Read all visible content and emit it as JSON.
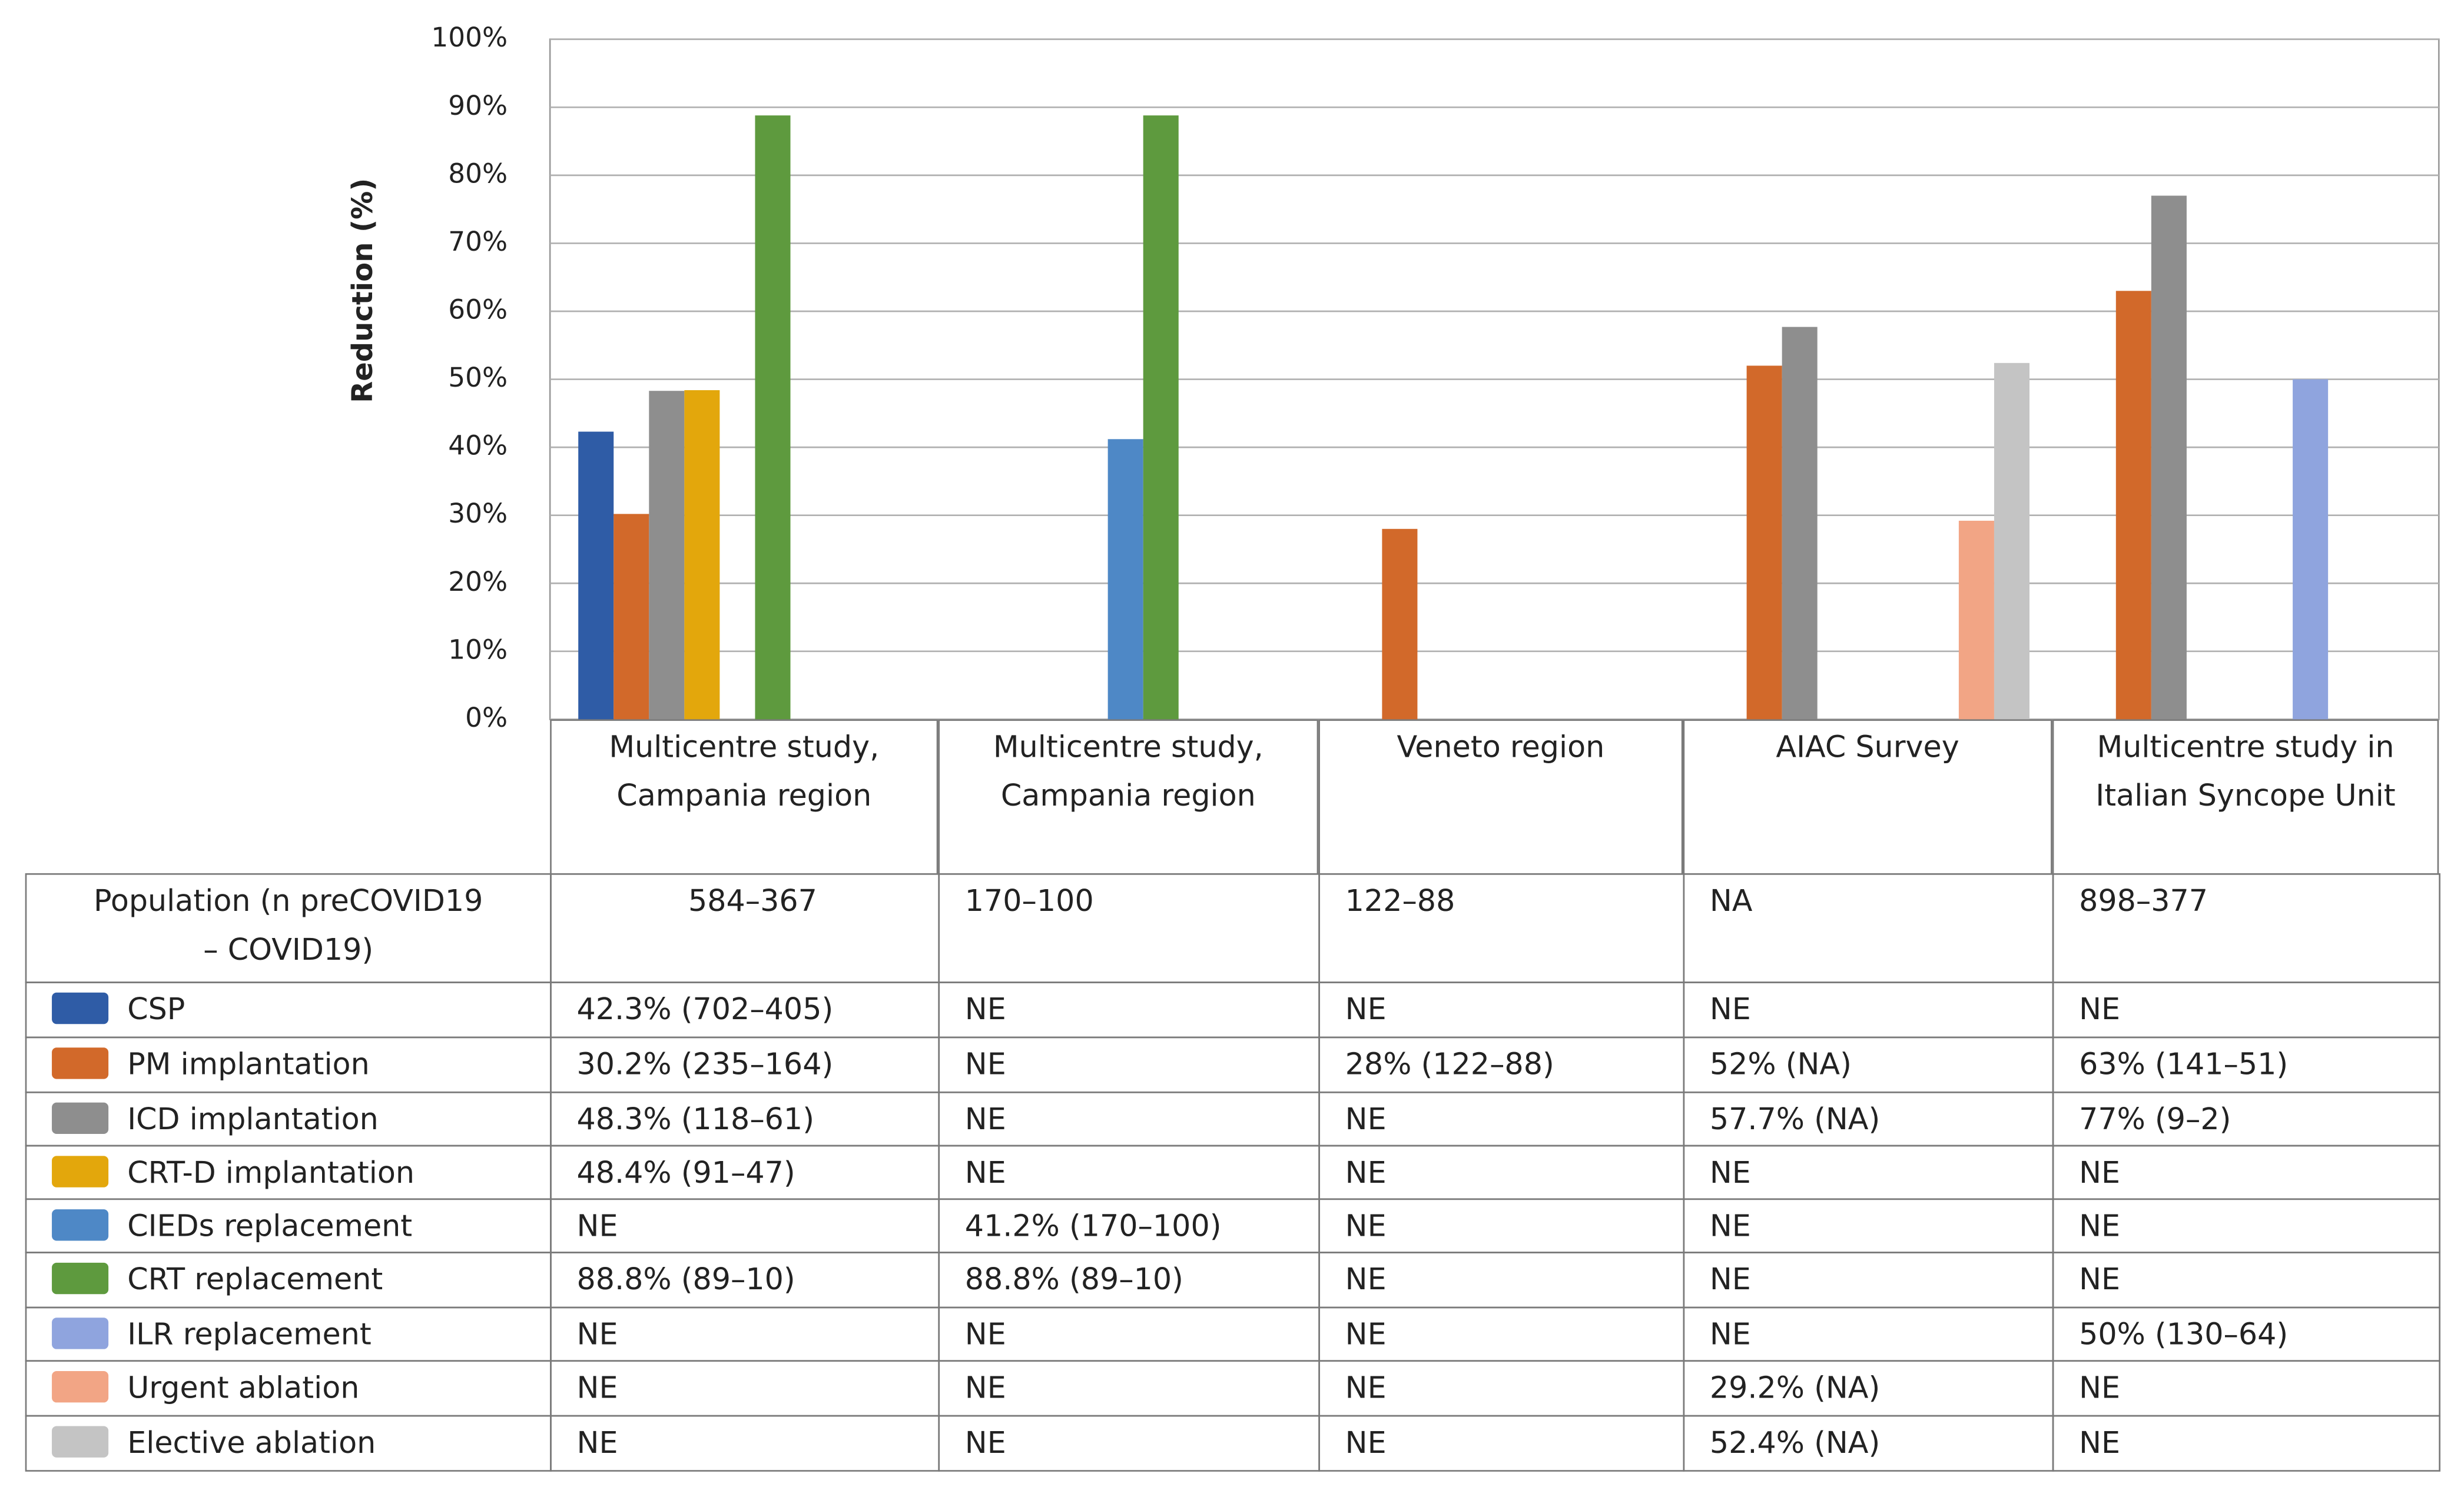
{
  "chart_data": {
    "type": "bar",
    "y_label": "Reduction (%)",
    "categories": [
      "Multicentre study, Campania region",
      "Multicentre study, Campania region",
      "Veneto region",
      "AIAC Survey",
      "Multicentre study in Italian Syncope Unit"
    ],
    "ylim": [
      0,
      100
    ],
    "yticks": [
      {
        "value": 0,
        "label": "0%"
      },
      {
        "value": 10,
        "label": "10%"
      },
      {
        "value": 20,
        "label": "20%"
      },
      {
        "value": 30,
        "label": "30%"
      },
      {
        "value": 40,
        "label": "40%"
      },
      {
        "value": 50,
        "label": "50%"
      },
      {
        "value": 60,
        "label": "60%"
      },
      {
        "value": 70,
        "label": "70%"
      },
      {
        "value": 80,
        "label": "80%"
      },
      {
        "value": 90,
        "label": "90%"
      },
      {
        "value": 100,
        "label": "100%"
      }
    ],
    "grid": true,
    "population_label": "Population (n preCOVID19 – COVID19)",
    "population": [
      "584–367",
      "170–100",
      "122–88",
      "NA",
      "898–377"
    ],
    "series": [
      {
        "name": "CSP",
        "color": "#2f5ca6",
        "values": [
          42.3,
          null,
          null,
          null,
          null
        ],
        "value_labels": [
          "42.3% (702–405)",
          "NE",
          "NE",
          "NE",
          "NE"
        ]
      },
      {
        "name": "PM implantation",
        "color": "#d2692a",
        "values": [
          30.2,
          null,
          28,
          52,
          63
        ],
        "value_labels": [
          "30.2% (235–164)",
          "NE",
          "28% (122–88)",
          "52% (NA)",
          "63% (141–51)"
        ]
      },
      {
        "name": "ICD implantation",
        "color": "#8e8e8e",
        "values": [
          48.3,
          null,
          null,
          57.7,
          77
        ],
        "value_labels": [
          "48.3% (118–61)",
          "NE",
          "NE",
          "57.7% (NA)",
          "77% (9–2)"
        ]
      },
      {
        "name": "CRT-D implantation",
        "color": "#e3a70c",
        "values": [
          48.4,
          null,
          null,
          null,
          null
        ],
        "value_labels": [
          "48.4% (91–47)",
          "NE",
          "NE",
          "NE",
          "NE"
        ]
      },
      {
        "name": "CIEDs replacement",
        "color": "#4e88c6",
        "values": [
          null,
          41.2,
          null,
          null,
          null
        ],
        "value_labels": [
          "NE",
          "41.2% (170–100)",
          "NE",
          "NE",
          "NE"
        ]
      },
      {
        "name": "CRT replacement",
        "color": "#5e9a3e",
        "values": [
          88.8,
          88.8,
          null,
          null,
          null
        ],
        "value_labels": [
          "88.8% (89–10)",
          "88.8% (89–10)",
          "NE",
          "NE",
          "NE"
        ]
      },
      {
        "name": "ILR replacement",
        "color": "#8fa4de",
        "values": [
          null,
          null,
          null,
          null,
          50
        ],
        "value_labels": [
          "NE",
          "NE",
          "NE",
          "NE",
          "50% (130–64)"
        ]
      },
      {
        "name": "Urgent ablation",
        "color": "#f2a585",
        "values": [
          null,
          null,
          null,
          29.2,
          null
        ],
        "value_labels": [
          "NE",
          "NE",
          "NE",
          "29.2% (NA)",
          "NE"
        ]
      },
      {
        "name": "Elective ablation",
        "color": "#c4c4c4",
        "values": [
          null,
          null,
          null,
          52.4,
          null
        ],
        "value_labels": [
          "NE",
          "NE",
          "NE",
          "52.4% (NA)",
          "NE"
        ]
      }
    ]
  }
}
